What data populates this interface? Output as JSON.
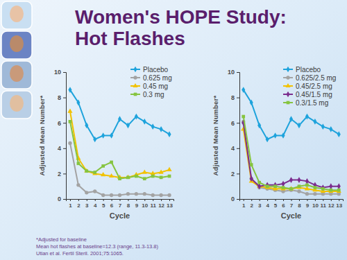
{
  "title_lines": [
    "Women's HOPE Study:",
    "Hot Flashes"
  ],
  "footnotes": [
    "*Adjusted for baseline",
    "Mean hot flashes at baseline=12.3 (range, 11.3-13.8)",
    "Utian et al. Fertil Steril. 2001;75:1065."
  ],
  "chart_data": [
    {
      "type": "line",
      "x_label": "Cycle",
      "y_label": "Adjusted Mean Number*",
      "x": [
        1,
        2,
        3,
        4,
        5,
        6,
        7,
        8,
        9,
        10,
        11,
        12,
        13
      ],
      "xlim": [
        0.5,
        13.5
      ],
      "xticks": [
        1,
        2,
        3,
        4,
        5,
        6,
        7,
        8,
        9,
        10,
        11,
        12,
        13
      ],
      "ylim": [
        0,
        10
      ],
      "yticks": [
        0,
        2,
        4,
        6,
        8,
        10
      ],
      "legend": "top-right",
      "grid": false,
      "series": [
        {
          "name": "Placebo",
          "color": "#1ea3dc",
          "marker": "diamond",
          "line_style": "solid",
          "values": [
            8.6,
            7.6,
            5.8,
            4.7,
            5.0,
            5.0,
            6.3,
            5.8,
            6.5,
            6.1,
            5.7,
            5.5,
            5.1
          ]
        },
        {
          "name": "0.625 mg",
          "color": "#a3a3a3",
          "marker": "circle",
          "line_style": "solid",
          "values": [
            4.4,
            1.1,
            0.5,
            0.6,
            0.3,
            0.3,
            0.3,
            0.4,
            0.4,
            0.4,
            0.3,
            0.3,
            0.3
          ]
        },
        {
          "name": "0.45 mg",
          "color": "#f2c200",
          "marker": "triangle",
          "line_style": "solid",
          "values": [
            6.9,
            3.2,
            2.2,
            2.0,
            1.9,
            1.8,
            1.7,
            1.7,
            1.9,
            2.1,
            2.0,
            2.1,
            2.3
          ]
        },
        {
          "name": "0.3 mg",
          "color": "#86c440",
          "marker": "square",
          "line_style": "solid",
          "values": [
            6.1,
            2.8,
            2.2,
            2.1,
            2.6,
            2.9,
            1.6,
            1.7,
            1.8,
            1.6,
            1.8,
            1.7,
            1.8
          ]
        }
      ]
    },
    {
      "type": "line",
      "x_label": "Cycle",
      "y_label": "Adjusted Mean Number*",
      "x": [
        1,
        2,
        3,
        4,
        5,
        6,
        7,
        8,
        9,
        10,
        11,
        12,
        13
      ],
      "xlim": [
        0.5,
        13.5
      ],
      "xticks": [
        1,
        2,
        3,
        4,
        5,
        6,
        7,
        8,
        9,
        10,
        11,
        12,
        13
      ],
      "ylim": [
        0,
        10
      ],
      "yticks": [
        0,
        2,
        4,
        6,
        8,
        10
      ],
      "legend": "top-right",
      "grid": false,
      "series": [
        {
          "name": "Placebo",
          "color": "#1ea3dc",
          "marker": "diamond",
          "line_style": "solid",
          "values": [
            8.6,
            7.6,
            5.8,
            4.7,
            5.0,
            5.0,
            6.3,
            5.8,
            6.5,
            6.1,
            5.7,
            5.5,
            5.1
          ]
        },
        {
          "name": "0.625/2.5 mg",
          "color": "#a3a3a3",
          "marker": "circle",
          "line_style": "solid",
          "values": [
            6.1,
            1.6,
            0.9,
            0.8,
            0.7,
            0.6,
            0.7,
            0.6,
            0.4,
            0.4,
            0.4,
            0.4,
            0.4
          ]
        },
        {
          "name": "0.45/2.5 mg",
          "color": "#f2c200",
          "marker": "triangle",
          "line_style": "solid",
          "values": [
            5.5,
            1.4,
            1.0,
            0.9,
            0.8,
            0.8,
            0.8,
            0.9,
            0.8,
            0.7,
            0.6,
            0.6,
            0.6
          ]
        },
        {
          "name": "0.45/1.5 mg",
          "color": "#7b2d8e",
          "marker": "diamond",
          "line_style": "solid",
          "values": [
            6.0,
            1.6,
            1.0,
            1.1,
            1.1,
            1.2,
            1.5,
            1.5,
            1.4,
            1.1,
            0.9,
            1.0,
            1.0
          ]
        },
        {
          "name": "0.3/1.5 mg",
          "color": "#86c440",
          "marker": "square",
          "line_style": "solid",
          "values": [
            6.5,
            2.7,
            1.3,
            1.0,
            1.0,
            0.9,
            0.8,
            1.0,
            1.1,
            0.9,
            0.8,
            0.7,
            0.7
          ]
        }
      ]
    }
  ]
}
